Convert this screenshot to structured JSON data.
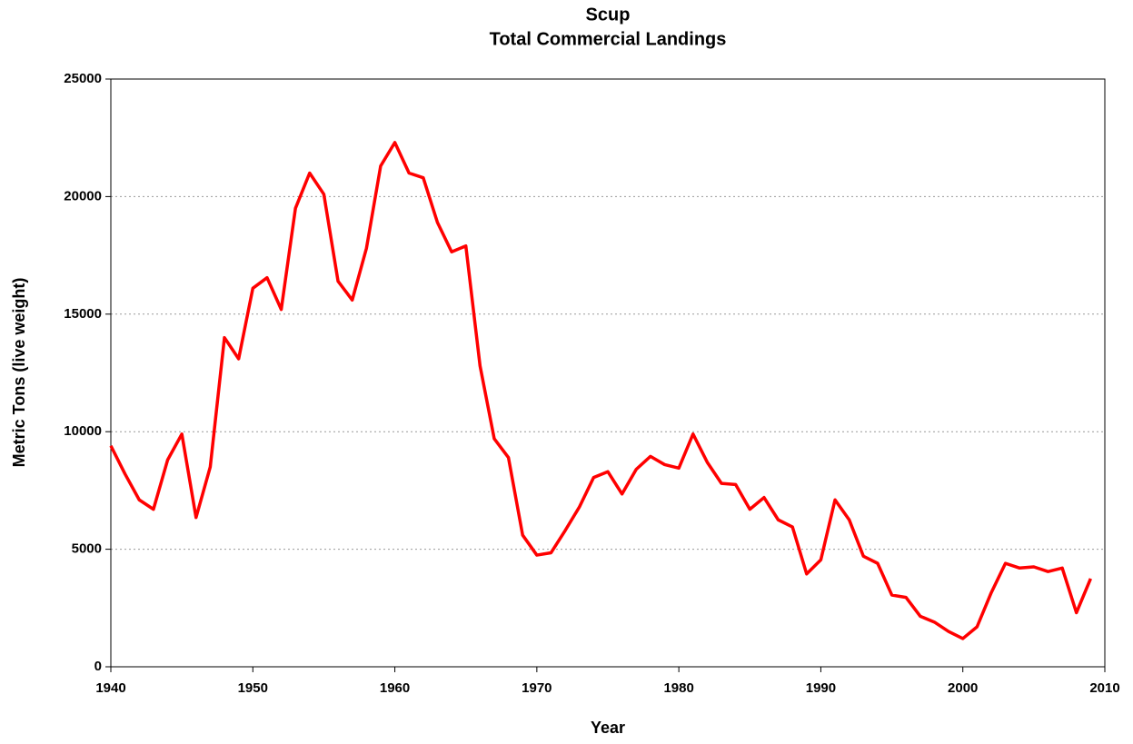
{
  "chart_data": {
    "type": "line",
    "title": "Scup",
    "subtitle": "Total Commercial Landings",
    "x_label": "Year",
    "y_label": "Metric Tons (live weight)",
    "x": [
      1940,
      1941,
      1942,
      1943,
      1944,
      1945,
      1946,
      1947,
      1948,
      1949,
      1950,
      1951,
      1952,
      1953,
      1954,
      1955,
      1956,
      1957,
      1958,
      1959,
      1960,
      1961,
      1962,
      1963,
      1964,
      1965,
      1966,
      1967,
      1968,
      1969,
      1970,
      1971,
      1972,
      1973,
      1974,
      1975,
      1976,
      1977,
      1978,
      1979,
      1980,
      1981,
      1982,
      1983,
      1984,
      1985,
      1986,
      1987,
      1988,
      1989,
      1990,
      1991,
      1992,
      1993,
      1994,
      1995,
      1996,
      1997,
      1998,
      1999,
      2000,
      2001,
      2002,
      2003,
      2004,
      2005,
      2006,
      2007,
      2008,
      2009
    ],
    "series": [
      {
        "name": "Scup",
        "color": "#ff0000",
        "values": [
          9400,
          8200,
          7100,
          6700,
          8800,
          9900,
          6350,
          8500,
          14000,
          13100,
          16100,
          16550,
          15200,
          19500,
          21000,
          20100,
          16400,
          15600,
          17800,
          21300,
          22300,
          21000,
          20800,
          18900,
          17650,
          17900,
          12800,
          9700,
          8900,
          5600,
          4750,
          4850,
          5800,
          6800,
          8050,
          8300,
          7350,
          8400,
          8950,
          8600,
          8450,
          9900,
          8700,
          7800,
          7750,
          6700,
          7200,
          6250,
          5950,
          3950,
          4550,
          7100,
          6250,
          4700,
          4400,
          3050,
          2950,
          2150,
          1900,
          1500,
          1200,
          1700,
          3150,
          4400,
          4200,
          4250,
          4050,
          4200,
          2300,
          3750
        ]
      }
    ],
    "xlim": [
      1940,
      2010
    ],
    "xticks": [
      1940,
      1950,
      1960,
      1970,
      1980,
      1990,
      2000,
      2010
    ],
    "ylim": [
      0,
      25000
    ],
    "yticks": [
      0,
      5000,
      10000,
      15000,
      20000,
      25000
    ],
    "grid": true
  }
}
